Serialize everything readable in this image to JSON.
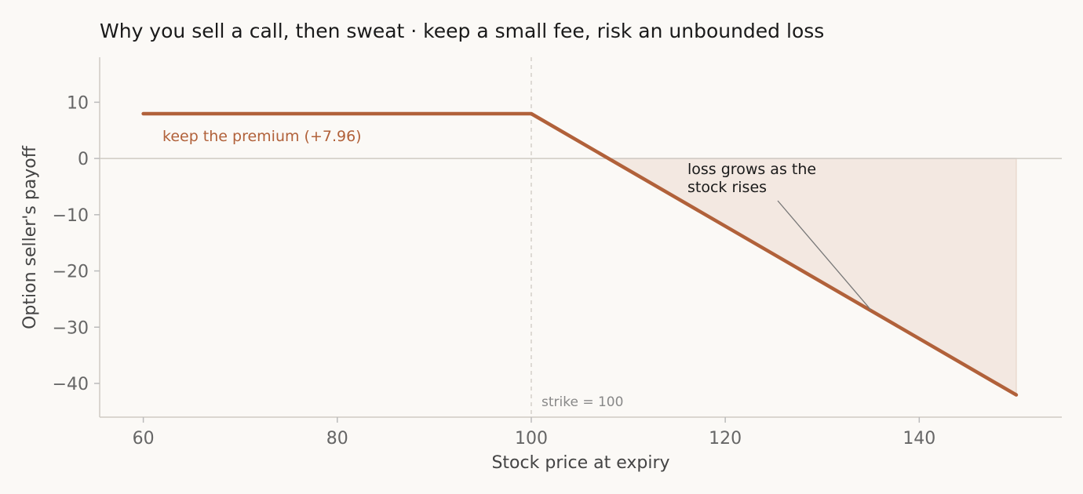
{
  "chart_data": {
    "type": "line",
    "title": "Why you sell a call, then sweat  ·  keep a small fee, risk an unbounded loss",
    "xlabel": "Stock price at expiry",
    "ylabel": "Option seller's payoff",
    "xlim": [
      55.5,
      154.7
    ],
    "ylim": [
      -46,
      18
    ],
    "x_ticks": [
      60,
      80,
      100,
      120,
      140
    ],
    "x_tick_labels": [
      "60",
      "80",
      "100",
      "120",
      "140"
    ],
    "y_ticks": [
      10,
      0,
      -10,
      -20,
      -30,
      -40
    ],
    "y_tick_labels": [
      "10",
      "0",
      "−10",
      "−20",
      "−30",
      "−40"
    ],
    "series": [
      {
        "x": [
          60,
          100,
          150
        ],
        "y": [
          7.96,
          7.96,
          -42.04
        ]
      }
    ],
    "strike": 100,
    "premium": 7.96,
    "zero_line": true,
    "loss_region_shaded": true,
    "annotations": {
      "premium": "keep the premium  (+7.96)",
      "loss_line1": "loss grows as the",
      "loss_line2": "stock rises",
      "loss_arrow_target": [
        135,
        -26.9
      ],
      "strike": "strike = 100"
    },
    "colors": {
      "line": "#b1613a",
      "fill": "#f3e8e1",
      "axis": "#cfcac4",
      "background": "#fbf9f6"
    }
  }
}
